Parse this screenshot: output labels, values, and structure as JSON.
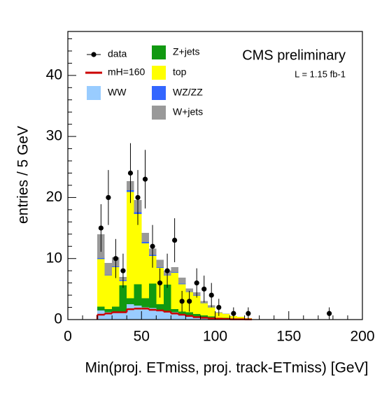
{
  "chart_data": {
    "type": "stacked_histogram",
    "xlabel": "Min(proj. ETmiss, proj. track-ETmiss) [GeV]",
    "ylabel": "entries / 5 GeV",
    "annotations": [
      "CMS preliminary",
      "L = 1.15 fb-1"
    ],
    "xlim": [
      0,
      200
    ],
    "ylim": [
      0,
      47.2
    ],
    "xticks": [
      0,
      50,
      100,
      150,
      200
    ],
    "yticks": [
      0,
      10,
      20,
      30,
      40
    ],
    "bins": [
      20,
      25,
      30,
      35,
      40,
      45,
      50,
      55,
      60,
      65,
      70,
      75,
      80,
      85,
      90,
      95,
      100,
      105,
      110,
      115,
      120,
      125
    ],
    "series": [
      {
        "name": "WW",
        "color": "#99ccff",
        "values": [
          1.5,
          1.2,
          1.3,
          1.1,
          2.5,
          2.3,
          2.0,
          1.9,
          1.5,
          1.2,
          1.2,
          0.8,
          0.6,
          0.5,
          0.4,
          0.3,
          0.2,
          0.2,
          0.1,
          0.1,
          0.05
        ]
      },
      {
        "name": "Z+jets",
        "color": "#119911",
        "values": [
          0.6,
          0.5,
          0.8,
          4.5,
          1.0,
          3.5,
          1.5,
          4.0,
          1.0,
          4.5,
          0.5,
          0.5,
          0.6,
          0.4,
          0.3,
          0.2,
          0.1,
          0.1,
          0.05,
          0.05,
          0
        ]
      },
      {
        "name": "top",
        "color": "#ffff00",
        "values": [
          7.8,
          5.5,
          6.5,
          0.7,
          17.4,
          11.5,
          9.0,
          4.5,
          6.0,
          1.5,
          6.0,
          4.5,
          3.3,
          3.0,
          2.0,
          1.5,
          0.8,
          0.6,
          0.4,
          0.3,
          0.2
        ]
      },
      {
        "name": "WZ/ZZ",
        "color": "#3366ff",
        "values": [
          0.2,
          0.1,
          0.1,
          0.1,
          0.3,
          0.3,
          0.2,
          0.2,
          0.1,
          0.1,
          0.1,
          0.1,
          0.1,
          0.05,
          0.05,
          0.05,
          0,
          0,
          0,
          0,
          0
        ]
      },
      {
        "name": "W+jets",
        "color": "#999999",
        "values": [
          3.9,
          2.0,
          1.5,
          0.6,
          1.5,
          2.0,
          1.5,
          1.0,
          1.2,
          0.7,
          0.8,
          1.0,
          0.5,
          0.5,
          0.3,
          0.3,
          0.1,
          0.1,
          0.05,
          0,
          0
        ]
      }
    ],
    "signal": {
      "name": "mH=160",
      "color": "#cc0000",
      "values": [
        0.8,
        1.0,
        1.2,
        1.2,
        1.7,
        1.8,
        1.8,
        1.6,
        1.5,
        1.3,
        1.0,
        0.8,
        0.6,
        0.4,
        0.3,
        0.2,
        0.15,
        0.1,
        0.05,
        0.05,
        0.03
      ]
    },
    "data": {
      "name": "data",
      "x": [
        22.5,
        27.5,
        32.5,
        37.5,
        42.5,
        47.5,
        52.5,
        57.5,
        62.5,
        67.5,
        72.5,
        77.5,
        82.5,
        87.5,
        92.5,
        97.5,
        102.5,
        112.5,
        122.5,
        177.5
      ],
      "values": [
        15,
        20,
        10,
        8,
        24,
        20,
        23,
        12,
        6,
        8,
        13,
        3,
        3,
        6,
        5,
        4,
        2,
        1,
        1,
        1
      ],
      "errors": [
        3.9,
        4.5,
        3.2,
        2.8,
        4.9,
        4.5,
        4.8,
        3.5,
        2.4,
        2.8,
        3.6,
        1.7,
        1.7,
        2.4,
        2.2,
        2.0,
        1.4,
        1.0,
        1.0,
        1.0
      ]
    }
  }
}
